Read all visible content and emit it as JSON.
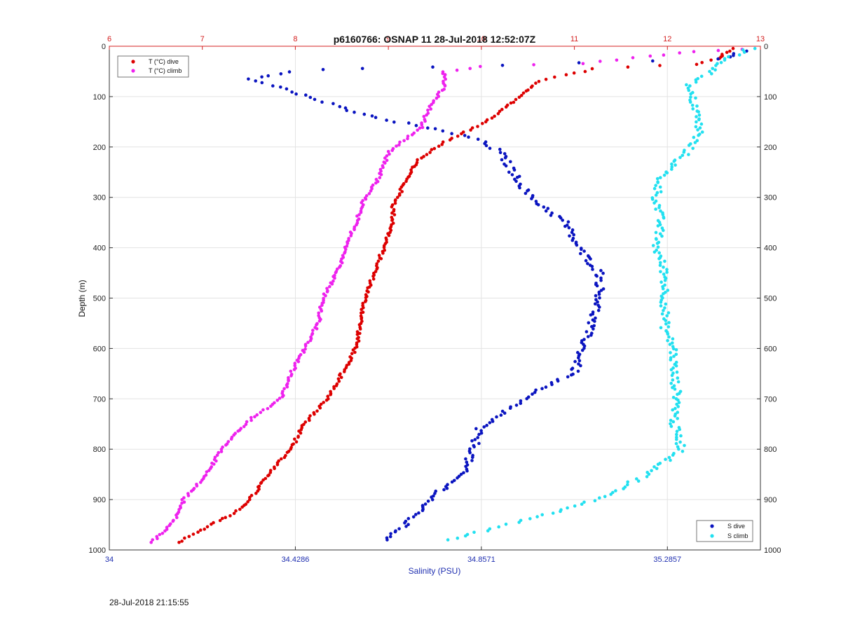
{
  "chart_data": {
    "type": "scatter",
    "title": "p6160766: OSNAP 11 28-Jul-2018 12:52:07Z",
    "ylabel": "Depth (m)",
    "xlabel": "Salinity (PSU)",
    "ylim": [
      0,
      1000
    ],
    "y_reversed": true,
    "y_ticks": [
      "0",
      "100",
      "200",
      "300",
      "400",
      "500",
      "600",
      "700",
      "800",
      "900",
      "1000"
    ],
    "salinity_axis": {
      "position": "bottom",
      "range": [
        34,
        35.5
      ],
      "ticks": [
        34,
        34.4286,
        34.8571,
        35.2857
      ],
      "tick_labels": [
        "34",
        "34.4286",
        "34.8571",
        "35.2857"
      ]
    },
    "temperature_axis": {
      "position": "top",
      "range": [
        6,
        13
      ],
      "ticks": [
        6,
        7,
        8,
        9,
        10,
        11,
        12,
        13
      ],
      "tick_labels": [
        "6",
        "7",
        "8",
        "9",
        "10",
        "11",
        "12",
        "13"
      ]
    },
    "grid": true,
    "legends": [
      {
        "placement": "top-left",
        "entries": [
          {
            "label": "T (°C) dive",
            "series": "T_dive"
          },
          {
            "label": "T (°C) climb",
            "series": "T_climb"
          }
        ]
      },
      {
        "placement": "bottom-right",
        "entries": [
          {
            "label": "S dive",
            "series": "S_dive"
          },
          {
            "label": "S climb",
            "series": "S_climb"
          }
        ]
      }
    ],
    "series": [
      {
        "name": "T (°C) dive",
        "key": "T_dive",
        "axis": "temperature",
        "color": "#dd0000",
        "points": [
          [
            12.7,
            5
          ],
          [
            12.6,
            15
          ],
          [
            12.55,
            25
          ],
          [
            12.3,
            35
          ],
          [
            11.2,
            45
          ],
          [
            10.6,
            70
          ],
          [
            10.35,
            110
          ],
          [
            10.05,
            150
          ],
          [
            9.6,
            190
          ],
          [
            9.3,
            230
          ],
          [
            9.15,
            280
          ],
          [
            9.05,
            320
          ],
          [
            9.05,
            350
          ],
          [
            8.95,
            400
          ],
          [
            8.85,
            450
          ],
          [
            8.75,
            500
          ],
          [
            8.7,
            550
          ],
          [
            8.65,
            600
          ],
          [
            8.5,
            650
          ],
          [
            8.35,
            700
          ],
          [
            8.1,
            750
          ],
          [
            7.95,
            800
          ],
          [
            7.7,
            850
          ],
          [
            7.6,
            880
          ],
          [
            7.4,
            920
          ],
          [
            7.1,
            950
          ],
          [
            6.9,
            970
          ],
          [
            6.75,
            985
          ]
        ]
      },
      {
        "name": "T (°C) climb",
        "key": "T_climb",
        "axis": "temperature",
        "color": "#ee22ee",
        "points": [
          [
            12.8,
            5
          ],
          [
            12.3,
            10
          ],
          [
            11.8,
            20
          ],
          [
            11.1,
            35
          ],
          [
            10.0,
            40
          ],
          [
            9.6,
            50
          ],
          [
            9.6,
            80
          ],
          [
            9.45,
            120
          ],
          [
            9.35,
            160
          ],
          [
            9.0,
            210
          ],
          [
            8.9,
            260
          ],
          [
            8.75,
            300
          ],
          [
            8.65,
            350
          ],
          [
            8.55,
            400
          ],
          [
            8.45,
            450
          ],
          [
            8.3,
            500
          ],
          [
            8.25,
            550
          ],
          [
            8.1,
            600
          ],
          [
            7.95,
            650
          ],
          [
            7.85,
            700
          ],
          [
            7.45,
            750
          ],
          [
            7.2,
            800
          ],
          [
            7.05,
            850
          ],
          [
            6.8,
            900
          ],
          [
            6.7,
            940
          ],
          [
            6.55,
            970
          ],
          [
            6.45,
            985
          ]
        ]
      },
      {
        "name": "S dive",
        "key": "S_dive",
        "axis": "salinity",
        "color": "#0a14c0",
        "points": [
          [
            35.46,
            10
          ],
          [
            35.41,
            25
          ],
          [
            34.58,
            45
          ],
          [
            34.42,
            50
          ],
          [
            34.33,
            65
          ],
          [
            34.42,
            90
          ],
          [
            34.58,
            135
          ],
          [
            34.66,
            150
          ],
          [
            34.75,
            165
          ],
          [
            34.85,
            185
          ],
          [
            34.9,
            210
          ],
          [
            34.93,
            250
          ],
          [
            34.97,
            300
          ],
          [
            35.05,
            350
          ],
          [
            35.08,
            400
          ],
          [
            35.13,
            450
          ],
          [
            35.13,
            500
          ],
          [
            35.11,
            550
          ],
          [
            35.09,
            600
          ],
          [
            35.07,
            650
          ],
          [
            34.99,
            680
          ],
          [
            34.92,
            720
          ],
          [
            34.85,
            760
          ],
          [
            34.84,
            800
          ],
          [
            34.81,
            850
          ],
          [
            34.74,
            900
          ],
          [
            34.68,
            950
          ],
          [
            34.64,
            980
          ]
        ]
      },
      {
        "name": "S climb",
        "key": "S_climb",
        "axis": "salinity",
        "color": "#22e0f0",
        "points": [
          [
            35.48,
            5
          ],
          [
            35.43,
            20
          ],
          [
            35.38,
            55
          ],
          [
            35.33,
            80
          ],
          [
            35.35,
            120
          ],
          [
            35.36,
            170
          ],
          [
            35.33,
            210
          ],
          [
            35.27,
            260
          ],
          [
            35.26,
            300
          ],
          [
            35.27,
            350
          ],
          [
            35.26,
            400
          ],
          [
            35.28,
            450
          ],
          [
            35.28,
            500
          ],
          [
            35.28,
            560
          ],
          [
            35.3,
            600
          ],
          [
            35.3,
            650
          ],
          [
            35.31,
            700
          ],
          [
            35.3,
            750
          ],
          [
            35.32,
            800
          ],
          [
            35.24,
            850
          ],
          [
            35.15,
            890
          ],
          [
            35.05,
            920
          ],
          [
            34.92,
            950
          ],
          [
            34.83,
            970
          ],
          [
            34.78,
            980
          ]
        ]
      }
    ]
  },
  "footer": {
    "timestamp": "28-Jul-2018 21:15:55"
  }
}
